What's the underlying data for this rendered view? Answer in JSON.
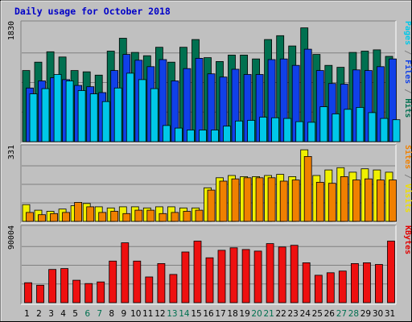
{
  "chart_data": {
    "type": "bar",
    "title": "Daily usage for October 2018",
    "categories": [
      "1",
      "2",
      "3",
      "4",
      "5",
      "6",
      "7",
      "8",
      "9",
      "10",
      "11",
      "12",
      "13",
      "14",
      "15",
      "16",
      "17",
      "18",
      "19",
      "20",
      "21",
      "22",
      "23",
      "24",
      "25",
      "26",
      "27",
      "28",
      "29",
      "30",
      "31"
    ],
    "weekend_days": [
      "6",
      "7",
      "13",
      "14",
      "20",
      "21",
      "27",
      "28"
    ],
    "panels": [
      {
        "id": "hits",
        "ylim": [
          0,
          1830
        ],
        "tick_label": "1830",
        "legend": [
          {
            "text": "Pages",
            "color": "#00c8e8"
          },
          {
            "text": " / ",
            "color": "#808080"
          },
          {
            "text": "Files",
            "color": "#1040e8"
          },
          {
            "text": " / ",
            "color": "#808080"
          },
          {
            "text": "Hits",
            "color": "#007050"
          }
        ],
        "series": [
          {
            "name": "Hits",
            "color": "#007050",
            "values": [
              1100,
              1230,
              1390,
              1310,
              1100,
              1080,
              1030,
              1400,
              1600,
              1380,
              1330,
              1460,
              1230,
              1460,
              1580,
              1300,
              1240,
              1340,
              1340,
              1280,
              1580,
              1640,
              1480,
              1760,
              1350,
              1180,
              1150,
              1380,
              1400,
              1420,
              1320
            ]
          },
          {
            "name": "Files",
            "color": "#1040e8",
            "values": [
              830,
              940,
              990,
              960,
              870,
              850,
              760,
              1100,
              1350,
              1260,
              1160,
              1270,
              940,
              1130,
              1290,
              1050,
              1000,
              1120,
              1040,
              1040,
              1270,
              1280,
              1180,
              1430,
              1100,
              900,
              890,
              1110,
              1100,
              1160,
              1280
            ]
          },
          {
            "name": "Pages",
            "color": "#00c8e8",
            "values": [
              740,
              820,
              1040,
              940,
              790,
              740,
              620,
              830,
              1060,
              960,
              820,
              250,
              210,
              180,
              180,
              180,
              240,
              320,
              330,
              380,
              370,
              360,
              310,
              300,
              540,
              430,
              500,
              530,
              450,
              360,
              340
            ]
          }
        ]
      },
      {
        "id": "visits",
        "ylim": [
          0,
          331
        ],
        "tick_label": "331",
        "legend": [
          {
            "text": "Sites",
            "color": "#f08000"
          },
          {
            "text": " / ",
            "color": "#808080"
          },
          {
            "text": "Visits",
            "color": "#f0e000"
          }
        ],
        "series": [
          {
            "name": "Visits",
            "color": "#f0f000",
            "values": [
              75,
              50,
              45,
              55,
              70,
              80,
              65,
              60,
              65,
              65,
              60,
              65,
              65,
              60,
              60,
              150,
              195,
              205,
              200,
              200,
              205,
              210,
              200,
              320,
              205,
              230,
              240,
              220,
              235,
              230,
              220
            ]
          },
          {
            "name": "Sites",
            "color": "#f08000",
            "values": [
              40,
              30,
              35,
              40,
              85,
              65,
              40,
              45,
              35,
              50,
              50,
              35,
              40,
              45,
              50,
              140,
              180,
              190,
              195,
              195,
              195,
              180,
              185,
              290,
              175,
              170,
              200,
              185,
              190,
              185,
              185
            ]
          }
        ]
      },
      {
        "id": "kbytes",
        "ylim": [
          0,
          90004
        ],
        "tick_label": "90004",
        "legend": [
          {
            "text": "KBytes",
            "color": "#e00000"
          }
        ],
        "series": [
          {
            "name": "KBytes",
            "color": "#ee1010",
            "values": [
              24000,
              21000,
              40000,
              41000,
              27000,
              23000,
              25000,
              50000,
              72000,
              50000,
              31000,
              47000,
              34000,
              61000,
              74000,
              54000,
              63000,
              66000,
              64000,
              62000,
              71000,
              67000,
              69000,
              48000,
              33000,
              36000,
              38000,
              47000,
              48000,
              46000,
              74000
            ]
          }
        ]
      }
    ]
  }
}
